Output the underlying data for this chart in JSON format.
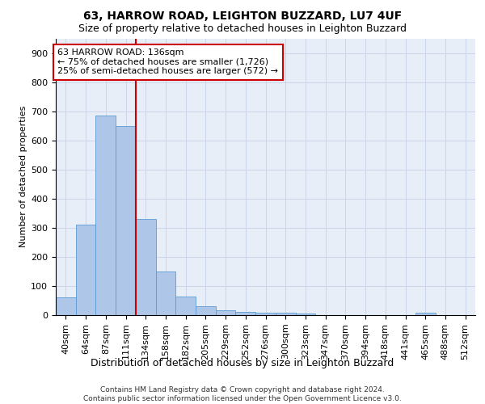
{
  "title1": "63, HARROW ROAD, LEIGHTON BUZZARD, LU7 4UF",
  "title2": "Size of property relative to detached houses in Leighton Buzzard",
  "xlabel": "Distribution of detached houses by size in Leighton Buzzard",
  "ylabel": "Number of detached properties",
  "footnote": "Contains HM Land Registry data © Crown copyright and database right 2024.\nContains public sector information licensed under the Open Government Licence v3.0.",
  "bar_labels": [
    "40sqm",
    "64sqm",
    "87sqm",
    "111sqm",
    "134sqm",
    "158sqm",
    "182sqm",
    "205sqm",
    "229sqm",
    "252sqm",
    "276sqm",
    "300sqm",
    "323sqm",
    "347sqm",
    "370sqm",
    "394sqm",
    "418sqm",
    "441sqm",
    "465sqm",
    "488sqm",
    "512sqm"
  ],
  "bar_values": [
    60,
    310,
    685,
    650,
    330,
    150,
    65,
    30,
    18,
    10,
    8,
    8,
    5,
    0,
    0,
    0,
    0,
    0,
    8,
    0,
    0
  ],
  "bar_color": "#aec6e8",
  "bar_edgecolor": "#5b9bd5",
  "vline_x": 3.5,
  "vline_color": "#cc0000",
  "annotation_line1": "63 HARROW ROAD: 136sqm",
  "annotation_line2": "← 75% of detached houses are smaller (1,726)",
  "annotation_line3": "25% of semi-detached houses are larger (572) →",
  "annotation_box_color": "#ffffff",
  "annotation_box_edgecolor": "#cc0000",
  "ylim": [
    0,
    950
  ],
  "yticks": [
    0,
    100,
    200,
    300,
    400,
    500,
    600,
    700,
    800,
    900
  ],
  "grid_color": "#ccd6eb",
  "bg_color": "#e8eef8",
  "title1_fontsize": 10,
  "title2_fontsize": 9,
  "xlabel_fontsize": 9,
  "ylabel_fontsize": 8,
  "tick_fontsize": 8,
  "annotation_fontsize": 8
}
